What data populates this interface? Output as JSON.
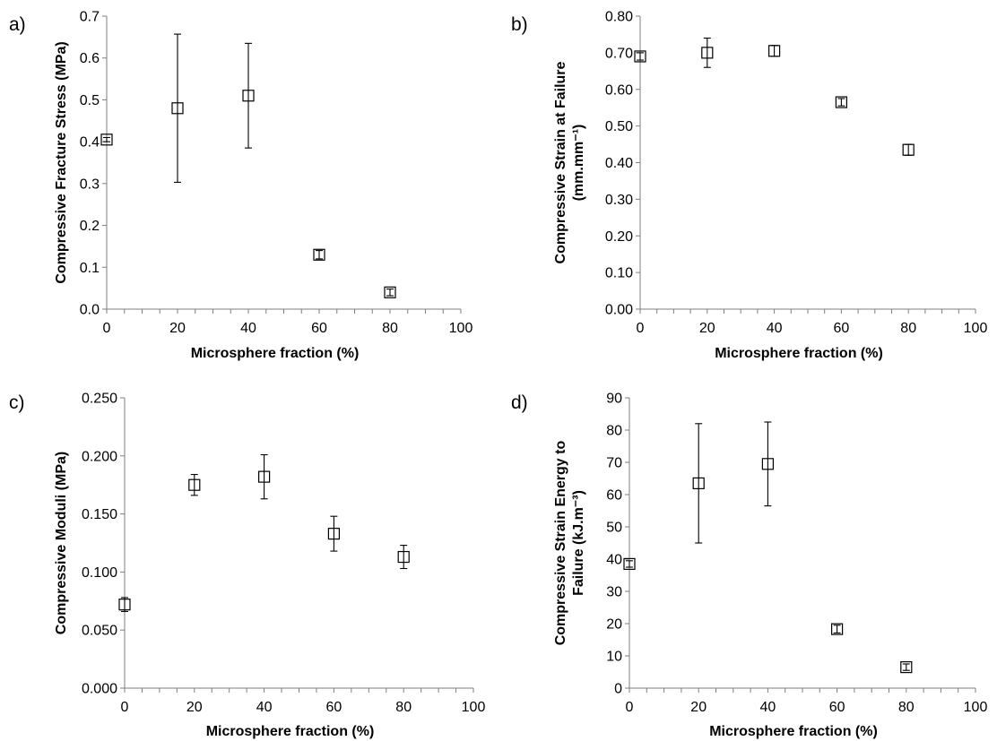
{
  "chart_data": [
    {
      "panel_label": "a)",
      "type": "scatter",
      "xlabel": "Microsphere fraction (%)",
      "ylabel_lines": [
        "Compressive Fracture Stress (MPa)"
      ],
      "xlim": [
        0,
        100
      ],
      "ylim": [
        0,
        0.7
      ],
      "x_ticks": [
        "0",
        "20",
        "40",
        "60",
        "80",
        "100"
      ],
      "y_ticks": [
        "0.0",
        "0.1",
        "0.2",
        "0.3",
        "0.4",
        "0.5",
        "0.6",
        "0.7"
      ],
      "x": [
        0,
        20,
        40,
        60,
        80
      ],
      "y": [
        0.405,
        0.48,
        0.51,
        0.13,
        0.04
      ],
      "error": [
        0.005,
        0.177,
        0.125,
        0.01,
        0.008
      ],
      "grid": false,
      "marker": "open-square"
    },
    {
      "panel_label": "b)",
      "type": "scatter",
      "xlabel": "Microsphere fraction (%)",
      "ylabel_lines": [
        "Compressive Strain at Failure",
        "(mm.mm⁻¹)"
      ],
      "xlim": [
        0,
        100
      ],
      "ylim": [
        0,
        0.8
      ],
      "x_ticks": [
        "0",
        "20",
        "40",
        "60",
        "80",
        "100"
      ],
      "y_ticks": [
        "0.00",
        "0.10",
        "0.20",
        "0.30",
        "0.40",
        "0.50",
        "0.60",
        "0.70",
        "0.80"
      ],
      "x": [
        0,
        20,
        40,
        60,
        80
      ],
      "y": [
        0.69,
        0.7,
        0.705,
        0.565,
        0.435
      ],
      "error": [
        0.01,
        0.04,
        0.015,
        0.01,
        0.015
      ],
      "grid": false,
      "marker": "open-square"
    },
    {
      "panel_label": "c)",
      "type": "scatter",
      "xlabel": "Microsphere fraction (%)",
      "ylabel_lines": [
        "Compressive Moduli (MPa)"
      ],
      "xlim": [
        0,
        100
      ],
      "ylim": [
        0,
        0.25
      ],
      "x_ticks": [
        "0",
        "20",
        "40",
        "60",
        "80",
        "100"
      ],
      "y_ticks": [
        "0.000",
        "0.050",
        "0.100",
        "0.150",
        "0.200",
        "0.250"
      ],
      "x": [
        0,
        20,
        40,
        60,
        80
      ],
      "y": [
        0.072,
        0.175,
        0.182,
        0.133,
        0.113
      ],
      "error": [
        0.006,
        0.009,
        0.019,
        0.015,
        0.01
      ],
      "grid": false,
      "marker": "open-square"
    },
    {
      "panel_label": "d)",
      "type": "scatter",
      "xlabel": "Microsphere fraction (%)",
      "ylabel_lines": [
        "Compressive Strain Energy to",
        "Failure (kJ.m⁻³)"
      ],
      "xlim": [
        0,
        100
      ],
      "ylim": [
        0,
        90
      ],
      "x_ticks": [
        "0",
        "20",
        "40",
        "60",
        "80",
        "100"
      ],
      "y_ticks": [
        "0",
        "10",
        "20",
        "30",
        "40",
        "50",
        "60",
        "70",
        "80",
        "90"
      ],
      "x": [
        0,
        20,
        40,
        60,
        80
      ],
      "y": [
        38.5,
        63.5,
        69.5,
        18.3,
        6.5
      ],
      "error": [
        1.0,
        18.5,
        13.0,
        1.2,
        1.0
      ],
      "grid": false,
      "marker": "open-square"
    }
  ]
}
